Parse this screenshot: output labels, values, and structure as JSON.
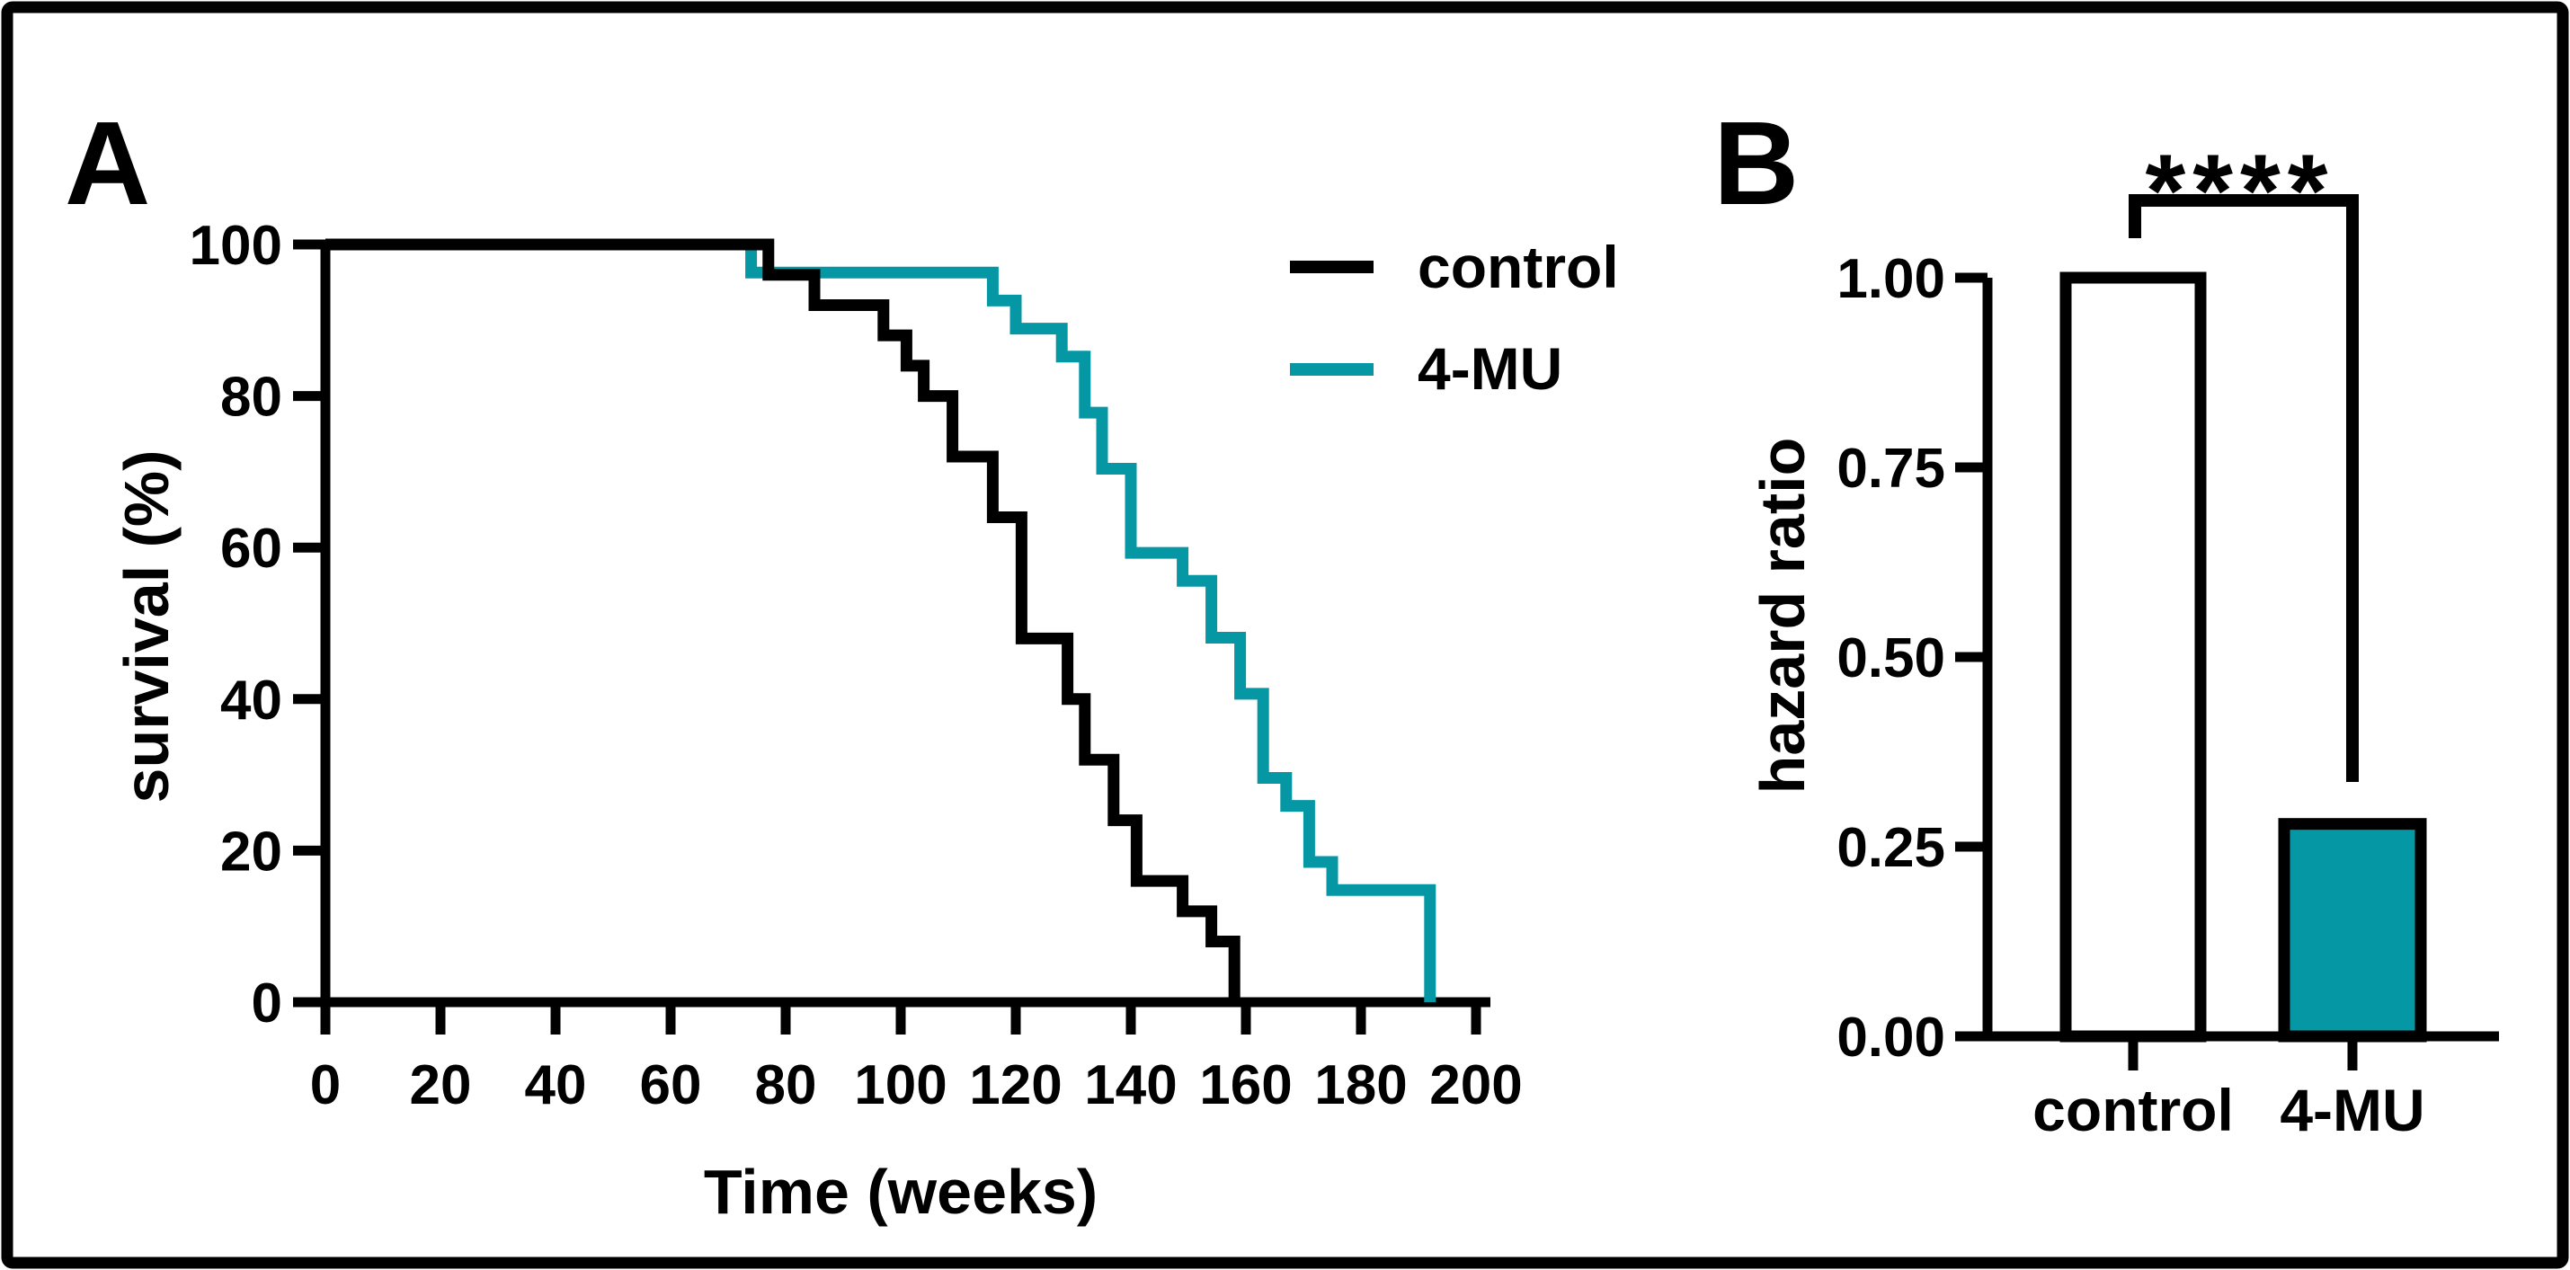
{
  "figure": {
    "panels": [
      {
        "label": "A"
      },
      {
        "label": "B"
      }
    ]
  },
  "colors": {
    "control": "#000000",
    "treatment": "#0697A5",
    "axis": "#000000",
    "bar_control_fill": "#FFFFFF",
    "bar_treatment_fill": "#0697A5",
    "background": "#FFFFFF"
  },
  "legend": {
    "items": [
      {
        "label": "control",
        "color": "#000000"
      },
      {
        "label": "4-MU",
        "color": "#0697A5"
      }
    ]
  },
  "chart_data": [
    {
      "id": "survival_curve",
      "type": "line",
      "subtype": "kaplan_meier_step",
      "xlabel": "Time (weeks)",
      "ylabel": "survival  (%)",
      "xlim": [
        0,
        200
      ],
      "ylim": [
        0,
        100
      ],
      "xtick_values": [
        0,
        20,
        40,
        60,
        80,
        100,
        120,
        140,
        160,
        180,
        200
      ],
      "xtick_labels": [
        "0",
        "20",
        "40",
        "60",
        "80",
        "100",
        "120",
        "140",
        "160",
        "180",
        "200"
      ],
      "ytick_values": [
        0,
        20,
        40,
        60,
        80,
        100
      ],
      "ytick_labels": [
        "0",
        "20",
        "40",
        "60",
        "80",
        "100"
      ],
      "grid": false,
      "legend_position": "top-right",
      "series": [
        {
          "name": "control",
          "color": "#000000",
          "steps": [
            [
              0,
              100
            ],
            [
              77,
              96
            ],
            [
              85,
              92
            ],
            [
              97,
              88
            ],
            [
              101,
              84
            ],
            [
              104,
              80
            ],
            [
              109,
              72
            ],
            [
              116,
              64
            ],
            [
              121,
              48
            ],
            [
              129,
              40
            ],
            [
              132,
              32
            ],
            [
              137,
              24
            ],
            [
              141,
              16
            ],
            [
              149,
              12
            ],
            [
              154,
              8
            ],
            [
              158,
              0
            ]
          ]
        },
        {
          "name": "4-MU",
          "color": "#0697A5",
          "steps": [
            [
              0,
              100
            ],
            [
              74,
              96.3
            ],
            [
              116,
              92.6
            ],
            [
              120,
              88.9
            ],
            [
              128,
              85.2
            ],
            [
              132,
              77.8
            ],
            [
              135,
              70.4
            ],
            [
              140,
              59.3
            ],
            [
              149,
              55.6
            ],
            [
              154,
              48.1
            ],
            [
              159,
              40.7
            ],
            [
              163,
              29.6
            ],
            [
              167,
              25.9
            ],
            [
              171,
              18.5
            ],
            [
              175,
              14.8
            ],
            [
              192,
              0
            ]
          ]
        }
      ]
    },
    {
      "id": "hazard_ratio_bars",
      "type": "bar",
      "categories": [
        "control",
        "4-MU"
      ],
      "values": [
        1.0,
        0.28
      ],
      "bar_fill_colors": [
        "#FFFFFF",
        "#0697A5"
      ],
      "bar_edge_color": "#000000",
      "title": "",
      "xlabel": "",
      "ylabel": "hazard ratio",
      "ylim": [
        0,
        1.0
      ],
      "ytick_values": [
        0,
        0.25,
        0.5,
        0.75,
        1.0
      ],
      "ytick_labels": [
        "0.00",
        "0.25",
        "0.50",
        "0.75",
        "1.00"
      ],
      "grid": false,
      "significance": {
        "label": "****",
        "between": [
          "control",
          "4-MU"
        ]
      }
    }
  ]
}
